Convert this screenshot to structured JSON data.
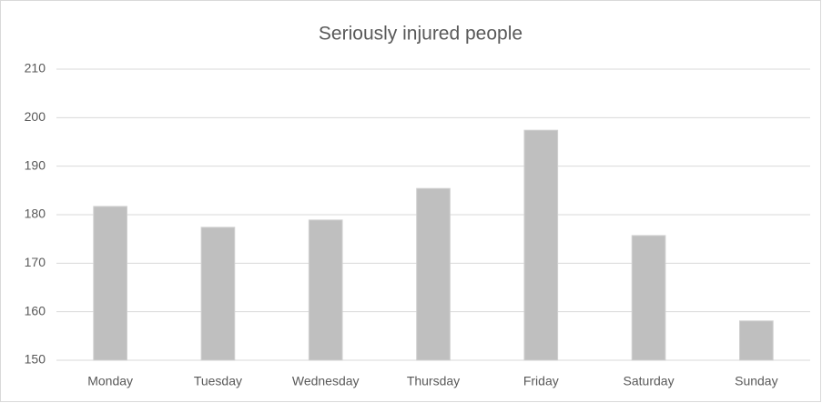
{
  "chart_data": {
    "type": "bar",
    "title": "Seriously injured people",
    "categories": [
      "Monday",
      "Tuesday",
      "Wednesday",
      "Thursday",
      "Friday",
      "Saturday",
      "Sunday"
    ],
    "values": [
      181.7,
      177.4,
      178.9,
      185.4,
      197.4,
      175.7,
      158.1
    ],
    "color": "#bfbfbf",
    "ylim": [
      150,
      210
    ],
    "yticks": [
      150,
      160,
      170,
      180,
      190,
      200,
      210
    ],
    "grid": true
  }
}
